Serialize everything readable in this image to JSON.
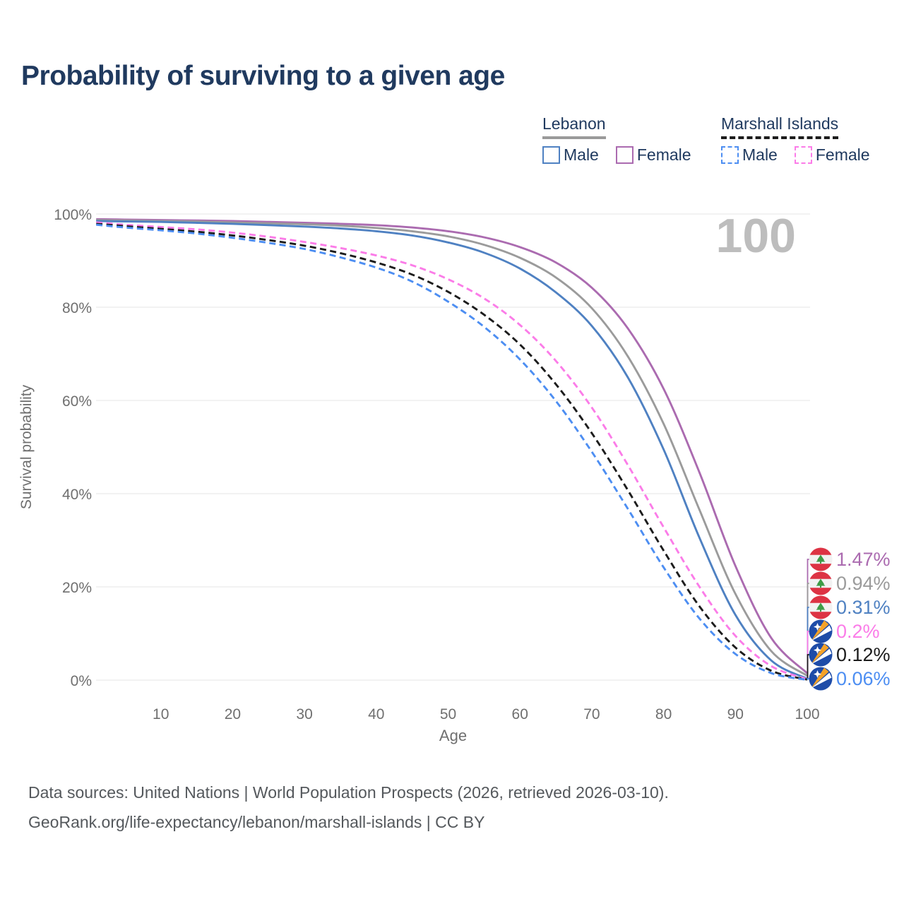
{
  "page_title": "Probability of surviving to a given age",
  "watermark_age": "100",
  "legend": {
    "groups": [
      {
        "id": "lebanon",
        "label": "Lebanon",
        "line_style": "solid",
        "line_color": "#9a9a9a",
        "items": [
          {
            "id": "lebanon-male",
            "label": "Male",
            "color": "#4f81c2",
            "line_style": "solid"
          },
          {
            "id": "lebanon-female",
            "label": "Female",
            "color": "#ab6bb0",
            "line_style": "solid"
          }
        ]
      },
      {
        "id": "marshall-islands",
        "label": "Marshall Islands",
        "line_style": "dashed",
        "line_color": "#1c1c1c",
        "items": [
          {
            "id": "marshall-islands-male",
            "label": "Male",
            "color": "#4d8ef2",
            "line_style": "dashed"
          },
          {
            "id": "marshall-islands-female",
            "label": "Female",
            "color": "#fb7ce8",
            "line_style": "dashed"
          }
        ]
      }
    ]
  },
  "chart_data": {
    "type": "line",
    "title": "Probability of surviving to a given age",
    "xlabel": "Age",
    "ylabel": "Survival probability",
    "xlim": [
      1,
      100
    ],
    "ylim": [
      0,
      100
    ],
    "x_ticks": [
      10,
      20,
      30,
      40,
      50,
      60,
      70,
      80,
      90,
      100
    ],
    "y_ticks": [
      0,
      20,
      40,
      60,
      80,
      100
    ],
    "y_tick_suffix": "%",
    "grid": "horizontal",
    "legend_position": "top-right",
    "ages": [
      1,
      5,
      10,
      15,
      20,
      25,
      30,
      35,
      40,
      45,
      50,
      55,
      60,
      65,
      70,
      75,
      80,
      85,
      90,
      95,
      100
    ],
    "series": [
      {
        "name": "Lebanon Female",
        "country": "Lebanon",
        "sex": "Female",
        "color": "#ab6bb0",
        "dashed": false,
        "flag": "lebanon",
        "end_label": "1.47%",
        "values": [
          98.9,
          98.8,
          98.7,
          98.6,
          98.5,
          98.3,
          98.1,
          97.9,
          97.6,
          97.1,
          96.3,
          95.0,
          92.9,
          89.6,
          84.2,
          75.5,
          62.5,
          44.5,
          24.5,
          9.0,
          1.47
        ]
      },
      {
        "name": "Lebanon Both sexes",
        "country": "Lebanon",
        "sex": "Both",
        "color": "#9b9b9b",
        "dashed": false,
        "flag": "lebanon",
        "end_label": "0.94%",
        "values": [
          98.7,
          98.6,
          98.5,
          98.4,
          98.2,
          98.0,
          97.8,
          97.5,
          97.0,
          96.3,
          95.2,
          93.4,
          90.6,
          86.4,
          79.8,
          69.5,
          55.0,
          36.5,
          18.5,
          6.2,
          0.94
        ]
      },
      {
        "name": "Lebanon Male",
        "country": "Lebanon",
        "sex": "Male",
        "color": "#4f81c2",
        "dashed": false,
        "flag": "lebanon",
        "end_label": "0.31%",
        "values": [
          98.5,
          98.4,
          98.3,
          98.1,
          97.9,
          97.6,
          97.3,
          96.9,
          96.3,
          95.4,
          93.9,
          91.7,
          88.3,
          83.2,
          76.0,
          65.0,
          49.5,
          30.5,
          14.0,
          4.2,
          0.31
        ]
      },
      {
        "name": "Marshall Islands Female",
        "country": "Marshall Islands",
        "sex": "Female",
        "color": "#fb7ce8",
        "dashed": true,
        "flag": "marshall-islands",
        "end_label": "0.2%",
        "values": [
          98.2,
          97.7,
          97.2,
          96.7,
          96.0,
          95.1,
          94.0,
          92.7,
          91.1,
          89.0,
          86.0,
          81.9,
          76.2,
          68.5,
          58.5,
          46.2,
          32.8,
          20.0,
          9.5,
          3.0,
          0.2
        ]
      },
      {
        "name": "Marshall Islands Both sexes",
        "country": "Marshall Islands",
        "sex": "Both",
        "color": "#1c1c1c",
        "dashed": true,
        "flag": "marshall-islands",
        "end_label": "0.12%",
        "values": [
          97.9,
          97.4,
          96.8,
          96.2,
          95.4,
          94.4,
          93.2,
          91.6,
          89.6,
          87.0,
          83.3,
          78.4,
          72.0,
          63.5,
          53.0,
          40.8,
          27.8,
          15.8,
          7.0,
          2.0,
          0.12
        ]
      },
      {
        "name": "Marshall Islands Male",
        "country": "Marshall Islands",
        "sex": "Male",
        "color": "#4d8ef2",
        "dashed": true,
        "flag": "marshall-islands",
        "end_label": "0.06%",
        "values": [
          97.7,
          97.1,
          96.5,
          95.8,
          94.9,
          93.8,
          92.5,
          90.7,
          88.5,
          85.5,
          81.2,
          75.8,
          68.8,
          59.9,
          49.0,
          36.8,
          24.2,
          13.2,
          5.6,
          1.5,
          0.06
        ]
      }
    ]
  },
  "footer": {
    "line1": "Data sources: United Nations | World Population Prospects (2026, retrieved 2026-03-10).",
    "line2": "GeoRank.org/life-expectancy/lebanon/marshall-islands | CC BY"
  },
  "colors": {
    "title_text": "#203a5f",
    "axis_text": "#6f6f6f",
    "grid_line": "#ebebeb",
    "watermark": "#bdbdbd",
    "footer_text": "#54585c",
    "lebanon_flag_red": "#dd3344",
    "lebanon_flag_green": "#3d9c47",
    "marshall_flag_blue": "#1e4ca8",
    "marshall_flag_orange": "#f5a227"
  }
}
